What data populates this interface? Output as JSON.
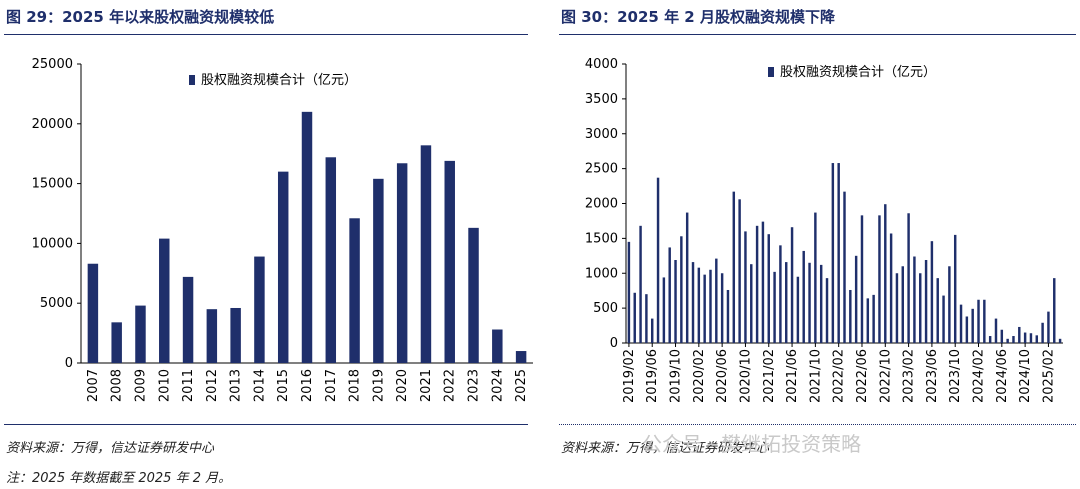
{
  "left_panel": {
    "title": "图 29：2025 年以来股权融资规模较低",
    "source": "资料来源：万得，信达证券研发中心",
    "note": "注：2025 年数据截至 2025 年 2 月。"
  },
  "right_panel": {
    "title": "图 30：2025 年 2 月股权融资规模下降",
    "source": "资料来源：万得，信达证券研发中心"
  },
  "watermark": "公众号 · 樊继拓投资策略",
  "colors": {
    "bar": "#1f2f6b",
    "title": "#1f2f6b",
    "axis": "#000000"
  },
  "chart_data": [
    {
      "type": "bar",
      "legend_position": "top-right",
      "series": [
        {
          "name": "股权融资规模合计（亿元）",
          "values": [
            8300,
            3400,
            4800,
            10400,
            7200,
            4500,
            4600,
            8900,
            16000,
            21000,
            17200,
            12100,
            15400,
            16700,
            18200,
            16900,
            11300,
            2800,
            1000
          ]
        }
      ],
      "categories": [
        "2007",
        "2008",
        "2009",
        "2010",
        "2011",
        "2012",
        "2013",
        "2014",
        "2015",
        "2016",
        "2017",
        "2018",
        "2019",
        "2020",
        "2021",
        "2022",
        "2023",
        "2024",
        "2025"
      ],
      "ylim": [
        0,
        25000
      ],
      "yticks": [
        "0",
        "5000",
        "10000",
        "15000",
        "20000",
        "25000"
      ],
      "grid": false
    },
    {
      "type": "bar",
      "legend_position": "top-right",
      "series": [
        {
          "name": "股权融资规模合计（亿元）",
          "values": [
            1450,
            720,
            1680,
            700,
            350,
            2370,
            940,
            1370,
            1190,
            1530,
            1870,
            1160,
            1080,
            980,
            1050,
            1210,
            1000,
            760,
            2170,
            2060,
            1600,
            1130,
            1680,
            1740,
            1560,
            1020,
            1400,
            1160,
            1660,
            950,
            1320,
            1150,
            1870,
            1120,
            930,
            2580,
            2580,
            2170,
            760,
            1250,
            1830,
            640,
            690,
            1830,
            1990,
            1570,
            1000,
            1100,
            1860,
            1240,
            1000,
            1190,
            1460,
            930,
            680,
            1100,
            1550,
            550,
            380,
            490,
            620,
            620,
            100,
            350,
            190,
            60,
            100,
            230,
            150,
            140,
            110,
            290,
            450,
            930,
            60
          ]
        }
      ],
      "categories": [
        "2019/02",
        "2019/03",
        "2019/04",
        "2019/05",
        "2019/06",
        "2019/07",
        "2019/08",
        "2019/09",
        "2019/10",
        "2019/11",
        "2019/12",
        "2020/01",
        "2020/02",
        "2020/03",
        "2020/04",
        "2020/05",
        "2020/06",
        "2020/07",
        "2020/08",
        "2020/09",
        "2020/10",
        "2020/11",
        "2020/12",
        "2021/01",
        "2021/02",
        "2021/03",
        "2021/04",
        "2021/05",
        "2021/06",
        "2021/07",
        "2021/08",
        "2021/09",
        "2021/10",
        "2021/11",
        "2021/12",
        "2022/01",
        "2022/02",
        "2022/03",
        "2022/04",
        "2022/05",
        "2022/06",
        "2022/07",
        "2022/08",
        "2022/09",
        "2022/10",
        "2022/11",
        "2022/12",
        "2023/01",
        "2023/02",
        "2023/03",
        "2023/04",
        "2023/05",
        "2023/06",
        "2023/07",
        "2023/08",
        "2023/09",
        "2023/10",
        "2023/11",
        "2023/12",
        "2024/01",
        "2024/02",
        "2024/03",
        "2024/04",
        "2024/05",
        "2024/06",
        "2024/07",
        "2024/08",
        "2024/09",
        "2024/10",
        "2024/11",
        "2024/12",
        "2025/01",
        "2025/02",
        "2025/03",
        "2025/04"
      ],
      "xtick_labels": [
        "2019/02",
        "2019/06",
        "2019/10",
        "2020/02",
        "2020/06",
        "2020/10",
        "2021/02",
        "2021/06",
        "2021/10",
        "2022/02",
        "2022/06",
        "2022/10",
        "2023/02",
        "2023/06",
        "2023/10",
        "2024/02",
        "2024/06",
        "2024/10",
        "2025/02"
      ],
      "ylim": [
        0,
        4000
      ],
      "yticks": [
        "0",
        "500",
        "1000",
        "1500",
        "2000",
        "2500",
        "3000",
        "3500",
        "4000"
      ],
      "grid": false
    }
  ]
}
